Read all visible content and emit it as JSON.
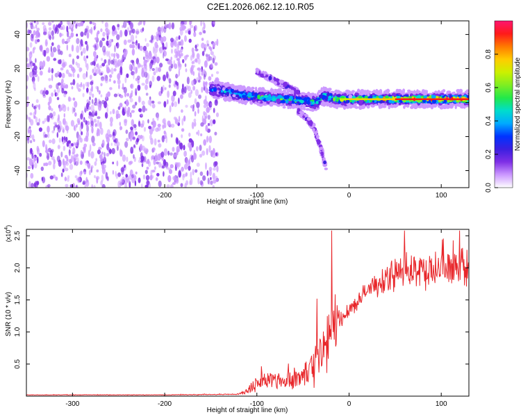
{
  "title": "C2E1.2026.062.12.10.R05",
  "colors": {
    "signal": "#e8262a",
    "background": "#ffffff",
    "colormap": [
      "#ffffff",
      "#cc99ff",
      "#7f2fe6",
      "#3b1fe0",
      "#0033ff",
      "#00aaff",
      "#00ddcc",
      "#22e84a",
      "#7fee22",
      "#ccf000",
      "#ffcc00",
      "#ff7a00",
      "#ff1a1a",
      "#ff1670"
    ]
  },
  "chart_data": [
    {
      "type": "heatmap",
      "name": "spectrogram",
      "xlabel": "Height of straight line (km)",
      "ylabel": "Frequency (Hz)",
      "xlim": [
        -350,
        130
      ],
      "ylim": [
        -50,
        48
      ],
      "xticks": [
        -300,
        -200,
        -100,
        0,
        100
      ],
      "xtick_labels": [
        "-300",
        "-200",
        "-100",
        "0",
        "100"
      ],
      "yticks": [
        -40,
        -20,
        0,
        20,
        40
      ],
      "ytick_labels": [
        "-40",
        "-20",
        "0",
        "20",
        "40"
      ],
      "colorbar": {
        "label": "Normalized spectral amplitude",
        "range": [
          0,
          1
        ],
        "ticks": [
          0.0,
          0.2,
          0.4,
          0.6,
          0.8
        ],
        "tick_labels": [
          "0.0",
          "0.2",
          "0.4",
          "0.6",
          "0.8"
        ]
      },
      "noise_region": {
        "x_range": [
          -350,
          -142
        ],
        "freq_range": [
          -50,
          48
        ],
        "amplitude": [
          0.05,
          0.2
        ]
      },
      "signal_track": {
        "x": [
          -150,
          -130,
          -110,
          -90,
          -70,
          -50,
          -35,
          -28,
          -22,
          -10,
          0,
          20,
          50,
          80,
          110,
          130
        ],
        "freq": [
          8,
          6,
          4,
          3,
          2,
          1,
          0,
          4,
          3,
          2,
          2,
          2,
          2,
          2,
          2,
          2
        ],
        "amplitude": [
          0.3,
          0.45,
          0.5,
          0.55,
          0.6,
          0.55,
          0.5,
          0.45,
          0.6,
          0.7,
          0.7,
          0.75,
          0.8,
          0.9,
          0.95,
          0.95
        ]
      },
      "secondary_branch": {
        "x": [
          -100,
          -85,
          -70,
          -55
        ],
        "freq": [
          18,
          14,
          10,
          6
        ],
        "amplitude": [
          0.15,
          0.2,
          0.25,
          0.2
        ]
      },
      "descending_feature": {
        "x": [
          -55,
          -45,
          -38,
          -30,
          -25
        ],
        "freq": [
          -5,
          -10,
          -15,
          -28,
          -38
        ],
        "amplitude": [
          0.2,
          0.2,
          0.15,
          0.15,
          0.2
        ]
      }
    },
    {
      "type": "line",
      "name": "snr",
      "xlabel": "Height of straight line (km)",
      "ylabel": "SNR (10 * v/v)",
      "scale_label": "(x10",
      "scale_exponent": "4",
      "xlim": [
        -350,
        130
      ],
      "ylim": [
        0,
        2.6
      ],
      "xticks": [
        -300,
        -200,
        -100,
        0,
        100
      ],
      "xtick_labels": [
        "-300",
        "-200",
        "-100",
        "0",
        "100"
      ],
      "yticks": [
        0.5,
        1.0,
        1.5,
        2.0,
        2.5
      ],
      "ytick_labels": [
        "0.5",
        "1.0",
        "1.5",
        "2.0",
        "2.5"
      ],
      "envelope": {
        "x": [
          -350,
          -200,
          -120,
          -110,
          -100,
          -90,
          -80,
          -70,
          -60,
          -50,
          -45,
          -40,
          -35,
          -30,
          -25,
          -20,
          -15,
          -13,
          -12,
          -10,
          0,
          10,
          20,
          30,
          40,
          50,
          60,
          70,
          80,
          90,
          100,
          110,
          120,
          130
        ],
        "mean": [
          0.02,
          0.02,
          0.03,
          0.08,
          0.22,
          0.25,
          0.26,
          0.24,
          0.27,
          0.3,
          0.4,
          0.5,
          0.55,
          0.65,
          0.8,
          0.95,
          1.05,
          1.1,
          1.2,
          1.25,
          1.35,
          1.5,
          1.65,
          1.75,
          1.85,
          1.9,
          1.95,
          1.95,
          1.97,
          1.98,
          1.98,
          1.98,
          1.97,
          1.95
        ],
        "noise": [
          0.005,
          0.005,
          0.01,
          0.08,
          0.15,
          0.2,
          0.18,
          0.18,
          0.18,
          0.25,
          0.35,
          0.4,
          0.45,
          0.55,
          0.6,
          0.7,
          0.8,
          0.5,
          0.4,
          0.25,
          0.15,
          0.15,
          0.18,
          0.22,
          0.25,
          0.28,
          0.3,
          0.32,
          0.33,
          0.35,
          0.33,
          0.32,
          0.3,
          0.28
        ]
      },
      "peaks": [
        {
          "x": -19,
          "y": 2.58
        },
        {
          "x": -35,
          "y": 1.52
        },
        {
          "x": 60,
          "y": 2.58
        },
        {
          "x": 120,
          "y": 2.58
        }
      ]
    }
  ]
}
